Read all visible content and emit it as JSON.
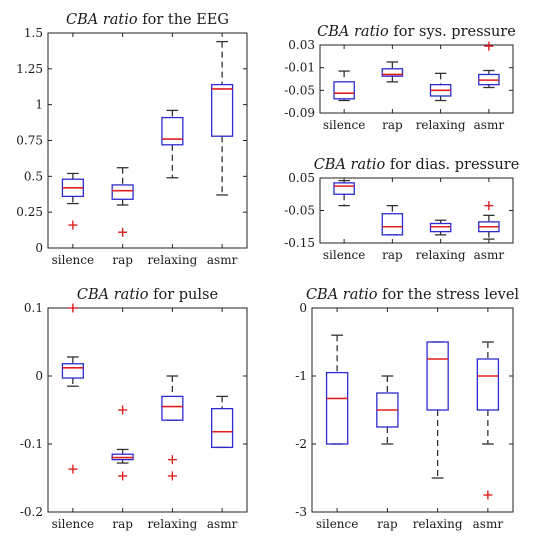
{
  "colors": {
    "box": "#2b2bcf",
    "median": "#e02020",
    "outlier": "#e02020",
    "whisker": "#333333",
    "axis": "#222222"
  },
  "chart_data": [
    {
      "type": "box",
      "title_italic": "CBA ratio",
      "title_rest": " for the EEG",
      "categories": [
        "silence",
        "rap",
        "relaxing",
        "asmr"
      ],
      "ylim": [
        0,
        1.5
      ],
      "yticks": [
        0,
        0.25,
        0.5,
        0.75,
        1,
        1.25,
        1.5
      ],
      "ytick_labels": [
        "0",
        "0.25",
        "0.5",
        "0.75",
        "1",
        "1.25",
        "1.5"
      ],
      "boxes": [
        {
          "q1": 0.36,
          "median": 0.42,
          "q3": 0.48,
          "lo": 0.31,
          "hi": 0.52,
          "outliers": [
            0.16
          ]
        },
        {
          "q1": 0.34,
          "median": 0.4,
          "q3": 0.44,
          "lo": 0.3,
          "hi": 0.56,
          "outliers": [
            0.11
          ]
        },
        {
          "q1": 0.72,
          "median": 0.76,
          "q3": 0.91,
          "lo": 0.49,
          "hi": 0.96,
          "outliers": []
        },
        {
          "q1": 0.78,
          "median": 1.11,
          "q3": 1.14,
          "lo": 0.37,
          "hi": 1.44,
          "outliers": []
        }
      ]
    },
    {
      "type": "box",
      "title_italic": "CBA ratio",
      "title_rest": " for sys. pressure",
      "categories": [
        "silence",
        "rap",
        "relaxing",
        "asmr"
      ],
      "ylim": [
        -0.09,
        0.03
      ],
      "yticks": [
        0.03,
        -0.01,
        -0.05,
        -0.09
      ],
      "ytick_labels": [
        "0.03",
        "-0.01",
        "-0.05",
        "-0.09"
      ],
      "boxes": [
        {
          "q1": -0.065,
          "median": -0.055,
          "q3": -0.035,
          "lo": -0.068,
          "hi": -0.016,
          "outliers": []
        },
        {
          "q1": -0.025,
          "median": -0.022,
          "q3": -0.012,
          "lo": -0.035,
          "hi": 0.0,
          "outliers": []
        },
        {
          "q1": -0.06,
          "median": -0.05,
          "q3": -0.04,
          "lo": -0.068,
          "hi": -0.02,
          "outliers": []
        },
        {
          "q1": -0.04,
          "median": -0.032,
          "q3": -0.022,
          "lo": -0.045,
          "hi": -0.015,
          "outliers": [
            0.028
          ]
        }
      ]
    },
    {
      "type": "box",
      "title_italic": "CBA ratio",
      "title_rest": " for dias. pressure",
      "categories": [
        "silence",
        "rap",
        "relaxing",
        "asmr"
      ],
      "ylim": [
        -0.15,
        0.05
      ],
      "yticks": [
        0.05,
        -0.05,
        -0.15
      ],
      "ytick_labels": [
        "0.05",
        "-0.05",
        "-0.15"
      ],
      "boxes": [
        {
          "q1": 0.0,
          "median": 0.025,
          "q3": 0.035,
          "lo": -0.035,
          "hi": 0.042,
          "outliers": []
        },
        {
          "q1": -0.125,
          "median": -0.1,
          "q3": -0.06,
          "lo": -0.125,
          "hi": -0.035,
          "outliers": []
        },
        {
          "q1": -0.115,
          "median": -0.1,
          "q3": -0.09,
          "lo": -0.125,
          "hi": -0.08,
          "outliers": []
        },
        {
          "q1": -0.115,
          "median": -0.1,
          "q3": -0.085,
          "lo": -0.138,
          "hi": -0.065,
          "outliers": [
            -0.035
          ]
        }
      ]
    },
    {
      "type": "box",
      "title_italic": "CBA ratio",
      "title_rest": " for pulse",
      "categories": [
        "silence",
        "rap",
        "relaxing",
        "asmr"
      ],
      "ylim": [
        -0.2,
        0.1
      ],
      "yticks": [
        0.1,
        0,
        -0.1,
        -0.2
      ],
      "ytick_labels": [
        "0.1",
        "0",
        "-0.1",
        "-0.2"
      ],
      "boxes": [
        {
          "q1": -0.003,
          "median": 0.012,
          "q3": 0.018,
          "lo": -0.015,
          "hi": 0.028,
          "outliers": [
            0.1,
            -0.137
          ]
        },
        {
          "q1": -0.123,
          "median": -0.12,
          "q3": -0.115,
          "lo": -0.128,
          "hi": -0.108,
          "outliers": [
            -0.05,
            -0.147
          ]
        },
        {
          "q1": -0.065,
          "median": -0.045,
          "q3": -0.03,
          "lo": -0.065,
          "hi": 0.0,
          "outliers": [
            -0.123,
            -0.147
          ]
        },
        {
          "q1": -0.105,
          "median": -0.082,
          "q3": -0.048,
          "lo": -0.105,
          "hi": -0.03,
          "outliers": []
        }
      ]
    },
    {
      "type": "box",
      "title_italic": "CBA ratio",
      "title_rest": " for the stress level",
      "categories": [
        "silence",
        "rap",
        "relaxing",
        "asmr"
      ],
      "ylim": [
        -3,
        0
      ],
      "yticks": [
        0,
        -1,
        -2,
        -3
      ],
      "ytick_labels": [
        "0",
        "-1",
        "-2",
        "-3"
      ],
      "boxes": [
        {
          "q1": -2.0,
          "median": -1.33,
          "q3": -0.95,
          "lo": -2.0,
          "hi": -0.4,
          "outliers": []
        },
        {
          "q1": -1.75,
          "median": -1.5,
          "q3": -1.25,
          "lo": -2.0,
          "hi": -1.0,
          "outliers": []
        },
        {
          "q1": -1.5,
          "median": -0.75,
          "q3": -0.5,
          "lo": -2.5,
          "hi": -0.5,
          "outliers": []
        },
        {
          "q1": -1.5,
          "median": -1.0,
          "q3": -0.75,
          "lo": -2.0,
          "hi": -0.5,
          "outliers": [
            -2.75
          ]
        }
      ]
    }
  ]
}
